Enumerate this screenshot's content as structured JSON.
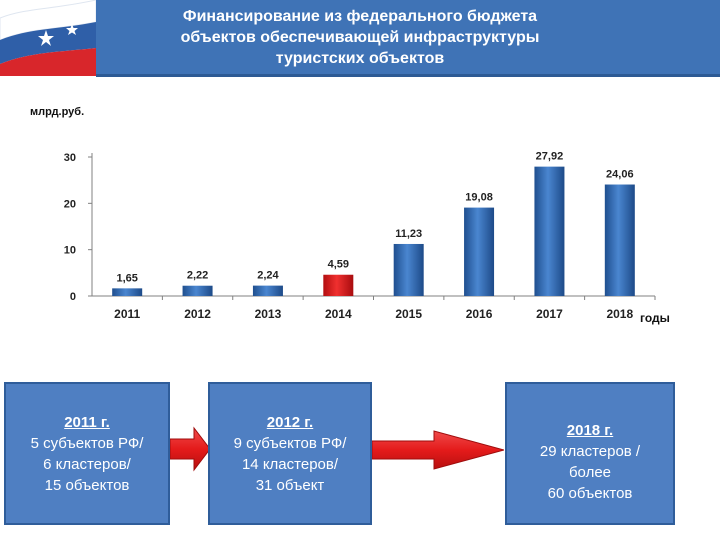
{
  "header": {
    "title_lines": [
      "Финансирование из федерального бюджета",
      "объектов обеспечивающей инфраструктуры",
      "туристских объектов"
    ]
  },
  "colors": {
    "header": "#3f73b6",
    "bar": "#2f64ad",
    "bar_highlight": "#e0191b",
    "box": "#4f7fc2",
    "arrow": "#e41b1b"
  },
  "chart_data": {
    "type": "bar",
    "ylabel": "млрд.руб.",
    "xlabel": "годы",
    "categories": [
      "2011",
      "2012",
      "2013",
      "2014",
      "2015",
      "2016",
      "2017",
      "2018"
    ],
    "values": [
      1.65,
      2.22,
      2.24,
      4.59,
      11.23,
      19.08,
      27.92,
      24.06
    ],
    "value_labels": [
      "1,65",
      "2,22",
      "2,24",
      "4,59",
      "11,23",
      "19,08",
      "27,92",
      "24,06"
    ],
    "highlight_category": "2014",
    "yticks": [
      0,
      10,
      20,
      30
    ],
    "ylim": [
      0,
      30
    ],
    "grid": false
  },
  "boxes": [
    {
      "year": "2011 г.",
      "lines": [
        "5 субъектов РФ/",
        "6 кластеров/",
        "15 объектов"
      ]
    },
    {
      "year": "2012 г.",
      "lines": [
        "9 субъектов РФ/",
        "14 кластеров/",
        "31 объект"
      ]
    },
    {
      "year": "2018 г.",
      "lines": [
        "29 кластеров /",
        "более",
        "60 объектов"
      ]
    }
  ]
}
